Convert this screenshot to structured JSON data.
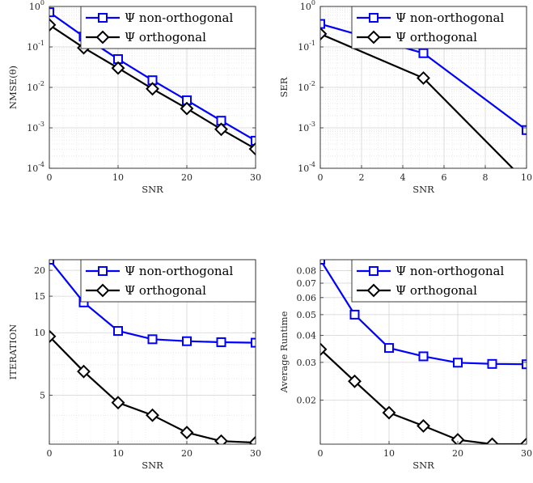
{
  "chart_data": [
    {
      "type": "line",
      "xlabel": "SNR",
      "ylabel": "NMSE(θ)",
      "yscale": "log",
      "xlim": [
        0,
        30
      ],
      "ylim": [
        0.0001,
        1
      ],
      "xticks": [
        0,
        10,
        20,
        30
      ],
      "xtick_labels": [
        "0",
        "10",
        "20",
        "30"
      ],
      "yticks": [
        0.0001,
        0.001,
        0.01,
        0.1,
        1
      ],
      "ytick_labels": [
        "10^-4",
        "10^-3",
        "10^-2",
        "10^-1",
        "10^0"
      ],
      "grid": true,
      "minor_grid": true,
      "legend_position": "top-right",
      "series": [
        {
          "name": "Ψ non-orthogonal",
          "color": "#0000ff",
          "marker": "square",
          "x": [
            0,
            5,
            10,
            15,
            20,
            25,
            30
          ],
          "y": [
            0.72,
            0.18,
            0.05,
            0.015,
            0.0048,
            0.0015,
            0.00048
          ]
        },
        {
          "name": "Ψ orthogonal",
          "color": "#000000",
          "marker": "diamond",
          "x": [
            0,
            5,
            10,
            15,
            20,
            25,
            30
          ],
          "y": [
            0.35,
            0.095,
            0.03,
            0.0092,
            0.003,
            0.00092,
            0.0003
          ]
        }
      ]
    },
    {
      "type": "line",
      "xlabel": "SNR",
      "ylabel": "SER",
      "yscale": "log",
      "xlim": [
        0,
        10
      ],
      "ylim": [
        0.0001,
        1
      ],
      "xticks": [
        0,
        2,
        4,
        6,
        8,
        10
      ],
      "xtick_labels": [
        "0",
        "2",
        "4",
        "6",
        "8",
        "10"
      ],
      "yticks": [
        0.0001,
        0.001,
        0.01,
        0.1,
        1
      ],
      "ytick_labels": [
        "10^-4",
        "10^-3",
        "10^-2",
        "10^-1",
        "10^0"
      ],
      "grid": true,
      "minor_grid": true,
      "legend_position": "top-right",
      "series": [
        {
          "name": "Ψ non-orthogonal",
          "color": "#0000ff",
          "marker": "square",
          "x": [
            0,
            5,
            10
          ],
          "y": [
            0.37,
            0.07,
            0.00088
          ]
        },
        {
          "name": "Ψ orthogonal",
          "color": "#000000",
          "marker": "diamond",
          "x": [
            0,
            5,
            10
          ],
          "y": [
            0.21,
            0.017,
            4.5e-05
          ]
        }
      ]
    },
    {
      "type": "line",
      "xlabel": "SNR",
      "ylabel": "ITERATION",
      "yscale": "log",
      "xlim": [
        0,
        30
      ],
      "ylim": [
        2.9,
        22.5
      ],
      "xticks": [
        0,
        10,
        20,
        30
      ],
      "xtick_labels": [
        "0",
        "10",
        "20",
        "30"
      ],
      "yticks": [
        5,
        10,
        15,
        20
      ],
      "ytick_labels": [
        "5",
        "10",
        "15",
        "20"
      ],
      "grid": true,
      "minor_grid": true,
      "legend_position": "top-right",
      "series": [
        {
          "name": "Ψ non-orthogonal",
          "color": "#0000ff",
          "marker": "square",
          "x": [
            0,
            5,
            10,
            15,
            20,
            25,
            30
          ],
          "y": [
            22.5,
            14,
            10.2,
            9.3,
            9.1,
            9.0,
            8.95
          ]
        },
        {
          "name": "Ψ orthogonal",
          "color": "#000000",
          "marker": "diamond",
          "x": [
            0,
            5,
            10,
            15,
            20,
            25,
            30
          ],
          "y": [
            9.6,
            6.5,
            4.6,
            4.0,
            3.3,
            3.0,
            2.95
          ]
        }
      ]
    },
    {
      "type": "line",
      "xlabel": "SNR",
      "ylabel": "Average Runtime",
      "yscale": "log",
      "xlim": [
        0,
        30
      ],
      "ylim": [
        0.0125,
        0.09
      ],
      "xticks": [
        0,
        10,
        20,
        30
      ],
      "xtick_labels": [
        "0",
        "10",
        "20",
        "30"
      ],
      "yticks": [
        0.02,
        0.03,
        0.04,
        0.05,
        0.06,
        0.07,
        0.08
      ],
      "ytick_labels": [
        "0.02",
        "0.03",
        "0.04",
        "0.05",
        "0.06",
        "0.07",
        "0.08"
      ],
      "grid": true,
      "minor_grid": true,
      "legend_position": "top-right",
      "series": [
        {
          "name": "Ψ non-orthogonal",
          "color": "#0000ff",
          "marker": "square",
          "x": [
            0,
            5,
            10,
            15,
            20,
            25,
            30
          ],
          "y": [
            0.09,
            0.05,
            0.035,
            0.032,
            0.0299,
            0.0295,
            0.0294
          ]
        },
        {
          "name": "Ψ orthogonal",
          "color": "#000000",
          "marker": "diamond",
          "x": [
            0,
            5,
            10,
            15,
            20,
            25,
            30
          ],
          "y": [
            0.0345,
            0.0245,
            0.0175,
            0.0152,
            0.0131,
            0.0125,
            0.0125
          ]
        }
      ]
    }
  ]
}
